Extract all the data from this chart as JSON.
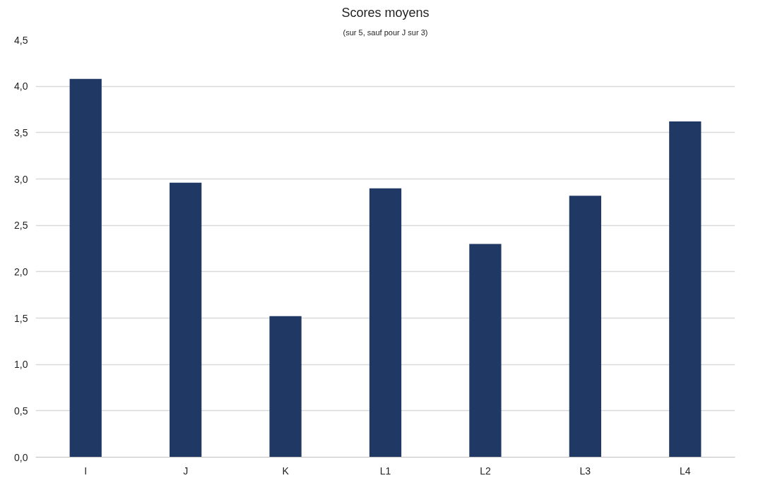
{
  "chart_data": {
    "type": "bar",
    "title": "Scores moyens",
    "subtitle": "(sur 5, sauf pour J sur 3)",
    "categories": [
      "I",
      "J",
      "K",
      "L1",
      "L2",
      "L3",
      "L4"
    ],
    "values": [
      4.08,
      2.96,
      1.52,
      2.9,
      2.3,
      2.82,
      3.62
    ],
    "color": "#203864",
    "ylim": [
      0,
      4.5
    ],
    "yticks": [
      {
        "value": 0,
        "label": "0,0"
      },
      {
        "value": 0.5,
        "label": "0,5"
      },
      {
        "value": 1,
        "label": "1,0"
      },
      {
        "value": 1.5,
        "label": "1,5"
      },
      {
        "value": 2,
        "label": "2,0"
      },
      {
        "value": 2.5,
        "label": "2,5"
      },
      {
        "value": 3,
        "label": "3,0"
      },
      {
        "value": 3.5,
        "label": "3,5"
      },
      {
        "value": 4,
        "label": "4,0"
      },
      {
        "value": 4.5,
        "label": "4,5"
      }
    ],
    "grid": "y"
  }
}
